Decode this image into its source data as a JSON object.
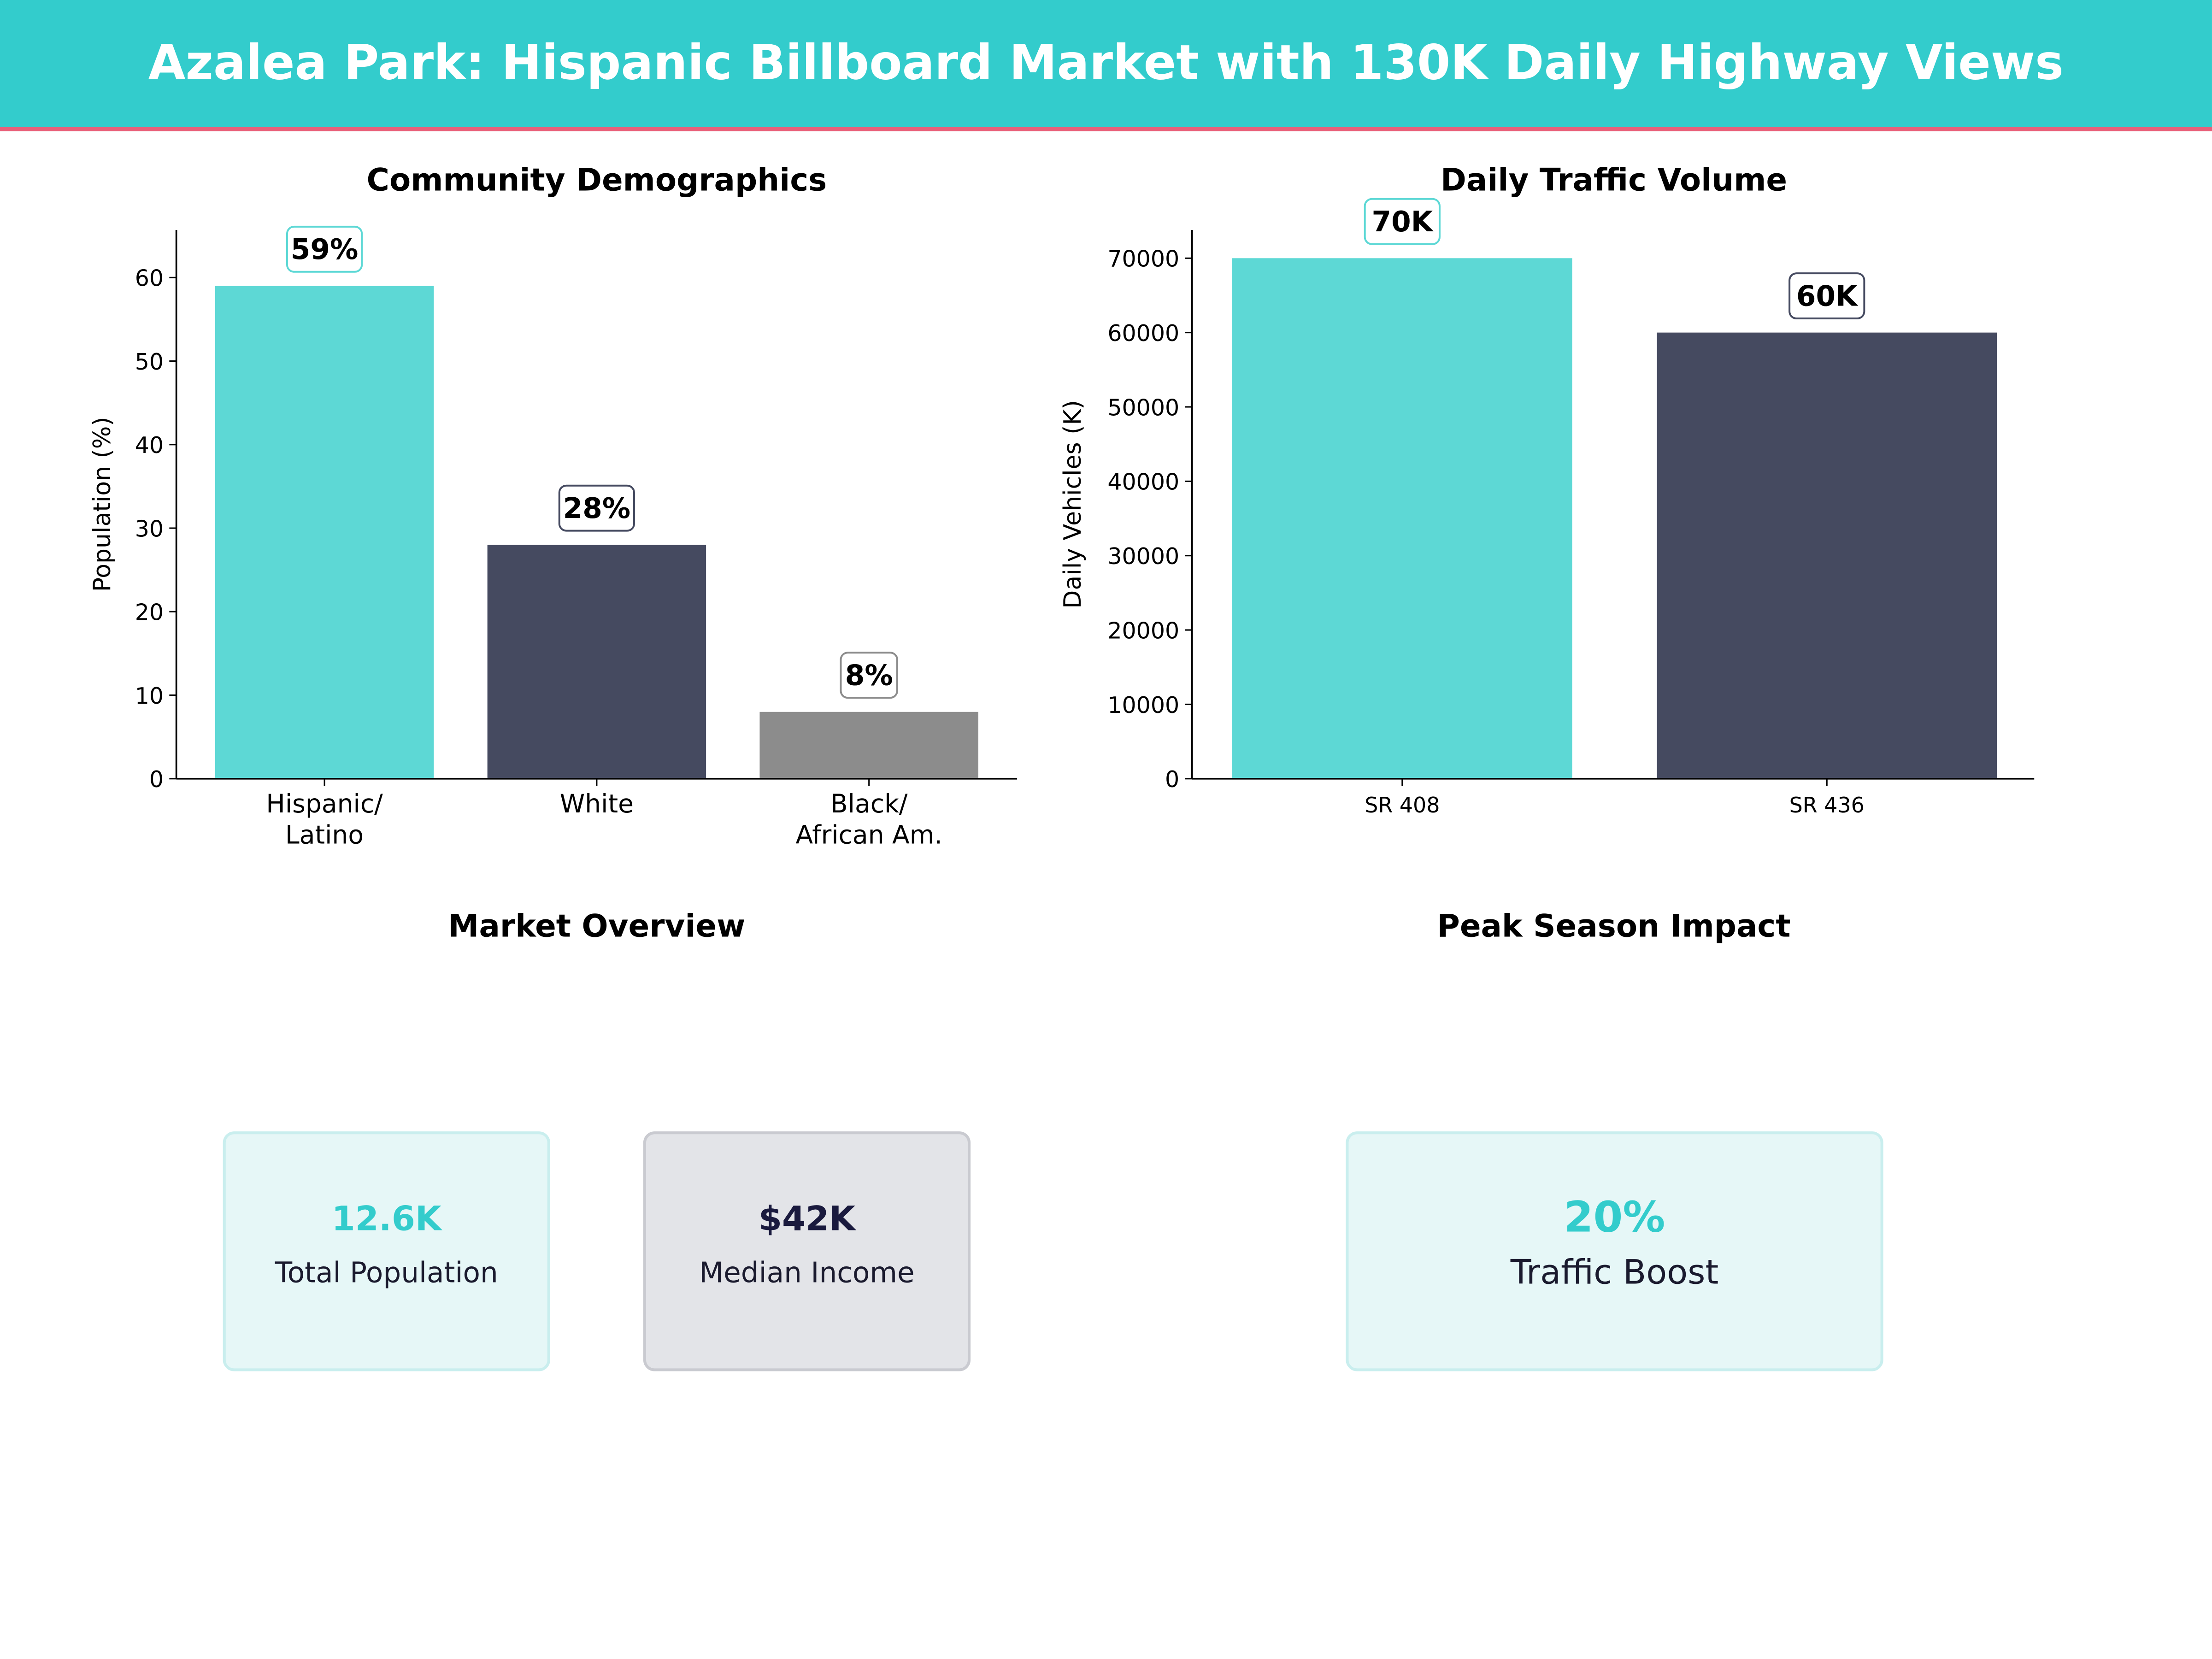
{
  "header": {
    "title": "Azalea Park: Hispanic Billboard Market with 130K Daily Highway Views"
  },
  "colors": {
    "teal": "#5dd8d5",
    "navy": "#454a60",
    "gray": "#8c8c8c",
    "header": "#33cccc",
    "accent_line": "#e8607a"
  },
  "chart_data": [
    {
      "type": "bar",
      "title": "Community Demographics",
      "ylabel": "Population (%)",
      "xlabel": "",
      "categories": [
        "Hispanic/\nLatino",
        "White",
        "Black/\nAfrican Am."
      ],
      "values": [
        59,
        28,
        8
      ],
      "data_labels": [
        "59%",
        "28%",
        "8%"
      ],
      "bar_colors": [
        "#5dd8d5",
        "#454a60",
        "#8c8c8c"
      ],
      "yticks": [
        0,
        10,
        20,
        30,
        40,
        50,
        60
      ],
      "ylim": [
        0,
        65.7
      ],
      "grid": false
    },
    {
      "type": "bar",
      "title": "Daily Traffic Volume",
      "ylabel": "Daily Vehicles (K)",
      "xlabel": "",
      "categories": [
        "SR 408",
        "SR 436"
      ],
      "values": [
        70000,
        60000
      ],
      "data_labels": [
        "70K",
        "60K"
      ],
      "bar_colors": [
        "#5dd8d5",
        "#454a60"
      ],
      "yticks": [
        0,
        10000,
        20000,
        30000,
        40000,
        50000,
        60000,
        70000
      ],
      "ylim": [
        0,
        73800
      ],
      "grid": false
    }
  ],
  "market_overview": {
    "title": "Market Overview",
    "cards": [
      {
        "value": "12.6K",
        "label": "Total Population"
      },
      {
        "value": "$42K",
        "label": "Median Income"
      }
    ]
  },
  "peak_season": {
    "title": "Peak Season Impact",
    "card": {
      "value": "20%",
      "label": "Traffic Boost"
    }
  }
}
